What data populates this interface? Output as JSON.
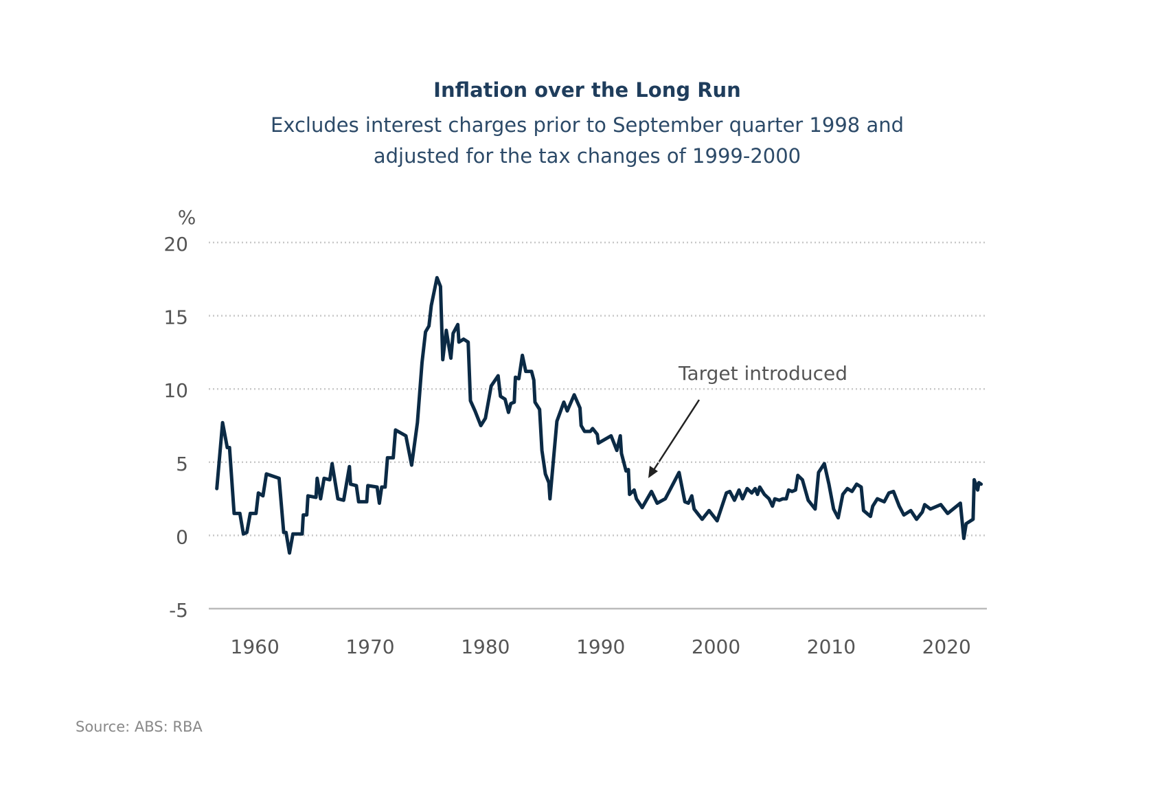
{
  "chart_data": {
    "type": "line",
    "title": "Inflation over the Long Run",
    "subtitle": [
      "Excludes interest charges prior to September quarter 1998 and",
      "adjusted for the tax changes of 1999-2000"
    ],
    "y_label": "%",
    "annotation": "Target introduced",
    "source": "Source: ABS: RBA",
    "color": "#0b2a45",
    "grid": true,
    "xlim": [
      1956,
      2023.5
    ],
    "xticks": [
      1960,
      1970,
      1980,
      1990,
      2000,
      2010,
      2020
    ],
    "ylim": [
      -5,
      20
    ],
    "yticks": [
      -5,
      0,
      5,
      10,
      15,
      20
    ],
    "x": [
      1956.7,
      1957.2,
      1957.6,
      1957.8,
      1958.2,
      1958.7,
      1959.0,
      1959.3,
      1959.6,
      1960.1,
      1960.3,
      1960.7,
      1961.0,
      1962.1,
      1962.5,
      1962.7,
      1963.0,
      1963.3,
      1964.1,
      1964.2,
      1964.5,
      1964.6,
      1965.3,
      1965.4,
      1965.7,
      1966.0,
      1966.5,
      1966.7,
      1967.2,
      1967.7,
      1968.2,
      1968.3,
      1968.8,
      1969.0,
      1969.7,
      1969.8,
      1970.6,
      1970.8,
      1971.0,
      1971.3,
      1971.5,
      1972.0,
      1972.2,
      1973.1,
      1973.6,
      1974.1,
      1974.5,
      1974.8,
      1975.1,
      1975.3,
      1975.8,
      1976.1,
      1976.3,
      1976.6,
      1977.0,
      1977.2,
      1977.6,
      1977.7,
      1978.1,
      1978.5,
      1978.7,
      1979.1,
      1979.6,
      1980.0,
      1980.5,
      1981.1,
      1981.3,
      1981.7,
      1982.0,
      1982.2,
      1982.5,
      1982.6,
      1982.9,
      1983.2,
      1983.5,
      1984.0,
      1984.2,
      1984.3,
      1984.7,
      1984.9,
      1985.2,
      1985.5,
      1985.6,
      1986.2,
      1986.8,
      1987.1,
      1987.7,
      1988.2,
      1988.3,
      1988.6,
      1989.1,
      1989.3,
      1989.7,
      1989.8,
      1990.9,
      1991.4,
      1991.7,
      1991.8,
      1992.2,
      1992.4,
      1992.5,
      1992.9,
      1993.1,
      1993.6,
      1994.4,
      1994.9,
      1995.6,
      1996.8,
      1997.3,
      1997.6,
      1997.9,
      1998.1,
      1998.8,
      1999.4,
      2000.1,
      2000.9,
      2001.2,
      2001.6,
      2002.0,
      2002.3,
      2002.7,
      2003.1,
      2003.4,
      2003.6,
      2003.8,
      2004.2,
      2004.6,
      2004.9,
      2005.1,
      2005.5,
      2005.8,
      2006.1,
      2006.3,
      2006.6,
      2006.9,
      2007.1,
      2007.5,
      2008.0,
      2008.6,
      2008.9,
      2009.4,
      2009.8,
      2010.2,
      2010.6,
      2011.0,
      2011.4,
      2011.8,
      2012.2,
      2012.6,
      2012.8,
      2013.4,
      2013.6,
      2014.0,
      2014.6,
      2015.0,
      2015.4,
      2015.9,
      2016.3,
      2016.9,
      2017.4,
      2017.9,
      2018.1,
      2018.6,
      2019.5,
      2020.1,
      2021.2,
      2021.5,
      2021.7,
      2022.3,
      2022.4,
      2022.7,
      2022.8,
      2023.0
    ],
    "values": [
      3.2,
      7.7,
      6.0,
      6.0,
      1.5,
      1.5,
      0.1,
      0.2,
      1.5,
      1.5,
      2.9,
      2.7,
      4.2,
      3.9,
      0.2,
      0.2,
      -1.2,
      0.1,
      0.1,
      1.4,
      1.4,
      2.7,
      2.6,
      3.9,
      2.5,
      3.9,
      3.8,
      4.9,
      2.5,
      2.4,
      4.7,
      3.5,
      3.4,
      2.3,
      2.3,
      3.4,
      3.3,
      2.2,
      3.3,
      3.3,
      5.3,
      5.3,
      7.2,
      6.8,
      4.8,
      7.7,
      11.8,
      13.9,
      14.3,
      15.7,
      17.6,
      17.0,
      12.0,
      14.0,
      12.1,
      13.8,
      14.4,
      13.2,
      13.4,
      13.2,
      9.2,
      8.5,
      7.5,
      8.0,
      10.2,
      10.9,
      9.5,
      9.3,
      8.4,
      9.0,
      9.1,
      10.8,
      10.7,
      12.3,
      11.2,
      11.2,
      10.6,
      9.1,
      8.6,
      5.8,
      4.2,
      3.6,
      2.5,
      7.8,
      9.1,
      8.5,
      9.6,
      8.7,
      7.5,
      7.1,
      7.1,
      7.3,
      6.9,
      6.3,
      6.8,
      5.8,
      6.8,
      5.6,
      4.4,
      4.5,
      2.8,
      3.1,
      2.5,
      1.9,
      3.0,
      2.2,
      2.5,
      4.3,
      2.3,
      2.2,
      2.7,
      1.8,
      1.1,
      1.7,
      1.0,
      2.9,
      3.0,
      2.4,
      3.1,
      2.5,
      3.2,
      2.9,
      3.2,
      2.8,
      3.3,
      2.8,
      2.5,
      2.0,
      2.5,
      2.4,
      2.5,
      2.5,
      3.1,
      3.0,
      3.1,
      4.1,
      3.8,
      2.4,
      1.8,
      4.3,
      4.9,
      3.5,
      1.8,
      1.2,
      2.8,
      3.2,
      3.0,
      3.5,
      3.3,
      1.7,
      1.3,
      2.0,
      2.5,
      2.3,
      2.9,
      3.0,
      2.0,
      1.4,
      1.7,
      1.1,
      1.6,
      2.1,
      1.8,
      2.1,
      1.5,
      2.2,
      -0.2,
      0.8,
      1.1,
      3.8,
      3.1,
      3.6,
      3.5
    ]
  }
}
